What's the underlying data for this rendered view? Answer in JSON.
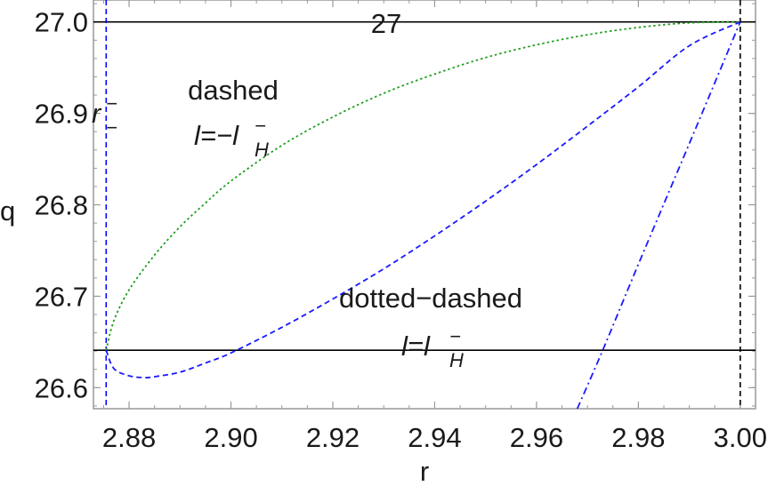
{
  "chart_data": {
    "type": "line",
    "xlabel": "r",
    "ylabel": "q",
    "xlim": [
      2.873,
      3.003
    ],
    "ylim": [
      26.577,
      27.024
    ],
    "x_ticks": [
      2.88,
      2.9,
      2.92,
      2.94,
      2.96,
      2.98,
      3.0
    ],
    "x_tick_labels": [
      "2.88",
      "2.90",
      "2.92",
      "2.94",
      "2.96",
      "2.98",
      "3.00"
    ],
    "y_ticks": [
      26.6,
      26.7,
      26.8,
      26.9,
      27.0
    ],
    "y_tick_labels": [
      "26.6",
      "26.7",
      "26.8",
      "26.9",
      "27.0"
    ],
    "frame_color": "#999999",
    "reference_lines": [
      {
        "orientation": "horizontal",
        "value": 27.0,
        "style": "solid",
        "color": "#000000"
      },
      {
        "orientation": "horizontal",
        "value": 26.641,
        "style": "solid",
        "color": "#000000"
      },
      {
        "orientation": "vertical",
        "value": 2.8755,
        "style": "dashed",
        "color": "#0000ff"
      },
      {
        "orientation": "vertical",
        "value": 3.0,
        "style": "dashed",
        "color": "#000000"
      }
    ],
    "series": [
      {
        "style": "dotted",
        "color": "#1e9e1e",
        "x": [
          2.8755,
          2.877,
          2.88,
          2.885,
          2.89,
          2.895,
          2.9,
          2.91,
          2.92,
          2.93,
          2.94,
          2.95,
          2.96,
          2.97,
          2.98,
          2.99,
          3.0
        ],
        "y": [
          26.641,
          26.673,
          26.707,
          26.745,
          26.776,
          26.802,
          26.826,
          26.865,
          26.896,
          26.922,
          26.943,
          26.961,
          26.975,
          26.986,
          26.994,
          26.999,
          27.0
        ]
      },
      {
        "style": "dashed",
        "color": "#1a1aff",
        "x": [
          2.8755,
          2.877,
          2.88,
          2.883,
          2.885,
          2.89,
          2.895,
          2.9,
          2.91,
          2.92,
          2.93,
          2.94,
          2.95,
          2.96,
          2.97,
          2.98,
          2.99,
          3.0
        ],
        "y": [
          26.641,
          26.621,
          26.613,
          26.611,
          26.612,
          26.617,
          26.627,
          26.638,
          26.666,
          26.697,
          26.73,
          26.766,
          26.804,
          26.844,
          26.886,
          26.929,
          26.974,
          27.0
        ]
      },
      {
        "style": "dash-dot",
        "color": "#1a1aff",
        "x": [
          2.968,
          2.973,
          2.98,
          2.99,
          3.0
        ],
        "y": [
          26.577,
          26.641,
          26.735,
          26.867,
          27.0
        ]
      }
    ],
    "annotations": {
      "top_value": "27",
      "r_minus_main": "r",
      "r_minus_sup": "−",
      "r_minus_sub": "−",
      "dashed_title": "dashed",
      "dashed_formula_main": "l=−l",
      "dashed_formula_sup": "−",
      "dashed_formula_sub": "H",
      "dotdash_title": "dotted−dashed",
      "dotdash_formula_main": "l=l",
      "dotdash_formula_sup": "−",
      "dotdash_formula_sub": "H"
    }
  }
}
